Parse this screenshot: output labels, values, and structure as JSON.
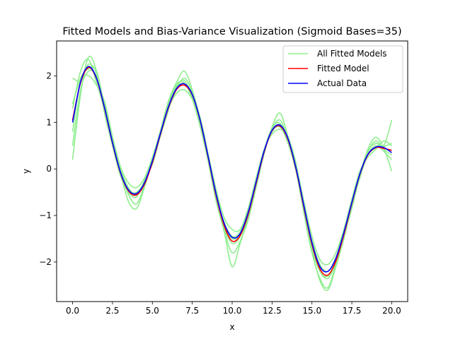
{
  "chart_data": {
    "type": "line",
    "title": "Fitted Models and Bias-Variance Visualization (Sigmoid Bases=35)",
    "xlabel": "x",
    "ylabel": "y",
    "xlim": [
      -1.0,
      21.0
    ],
    "ylim": [
      -2.85,
      2.75
    ],
    "xticks": [
      0.0,
      2.5,
      5.0,
      7.5,
      10.0,
      12.5,
      15.0,
      17.5,
      20.0
    ],
    "xtick_labels": [
      "0.0",
      "2.5",
      "5.0",
      "7.5",
      "10.0",
      "12.5",
      "15.0",
      "17.5",
      "20.0"
    ],
    "yticks": [
      -2,
      -1,
      0,
      1,
      2
    ],
    "ytick_labels": [
      "−2",
      "−1",
      "0",
      "1",
      "2"
    ],
    "grid": false,
    "legend_position": "top-right",
    "x": [
      0.0,
      0.5,
      1.0,
      1.5,
      2.0,
      2.5,
      3.0,
      3.5,
      4.0,
      4.5,
      5.0,
      5.5,
      6.0,
      6.5,
      7.0,
      7.5,
      8.0,
      8.5,
      9.0,
      9.5,
      10.0,
      10.5,
      11.0,
      11.5,
      12.0,
      12.5,
      13.0,
      13.5,
      14.0,
      14.5,
      15.0,
      15.5,
      16.0,
      16.5,
      17.0,
      17.5,
      18.0,
      18.5,
      19.0,
      19.5,
      20.0
    ],
    "series": [
      {
        "name": "Actual Data",
        "color": "#0000ff",
        "values": [
          1.0,
          1.87,
          2.2,
          1.95,
          1.32,
          0.57,
          -0.07,
          -0.45,
          -0.53,
          -0.3,
          0.17,
          0.76,
          1.33,
          1.72,
          1.83,
          1.6,
          1.04,
          0.26,
          -0.55,
          -1.17,
          -1.47,
          -1.39,
          -0.94,
          -0.28,
          0.38,
          0.83,
          0.94,
          0.65,
          0.02,
          -0.8,
          -1.58,
          -2.1,
          -2.2,
          -1.92,
          -1.37,
          -0.72,
          -0.11,
          0.31,
          0.47,
          0.46,
          0.35
        ]
      },
      {
        "name": "Fitted Model",
        "color": "#ff0000",
        "values": [
          1.05,
          1.85,
          2.18,
          1.94,
          1.31,
          0.56,
          -0.08,
          -0.47,
          -0.56,
          -0.33,
          0.14,
          0.74,
          1.31,
          1.7,
          1.8,
          1.59,
          1.03,
          0.24,
          -0.58,
          -1.22,
          -1.55,
          -1.43,
          -0.98,
          -0.31,
          0.36,
          0.82,
          0.92,
          0.63,
          0.0,
          -0.83,
          -1.62,
          -2.15,
          -2.28,
          -1.98,
          -1.41,
          -0.74,
          -0.12,
          0.3,
          0.46,
          0.44,
          0.4
        ]
      },
      {
        "name": "All Fitted Models",
        "color": "#90ee90",
        "lines": [
          [
            1.95,
            1.9,
            2.25,
            2.05,
            1.32,
            0.55,
            -0.05,
            -0.55,
            -0.75,
            -0.35,
            0.18,
            0.78,
            1.4,
            1.78,
            1.9,
            1.55,
            0.98,
            0.2,
            -0.6,
            -1.25,
            -1.6,
            -1.45,
            -1.0,
            -0.3,
            0.4,
            0.88,
            0.98,
            0.6,
            0.05,
            -0.9,
            -1.7,
            -2.2,
            -2.35,
            -2.0,
            -1.4,
            -0.78,
            -0.1,
            0.38,
            0.55,
            0.5,
            1.05
          ],
          [
            0.2,
            1.6,
            2.4,
            2.1,
            1.2,
            0.5,
            -0.1,
            -0.7,
            -0.85,
            -0.4,
            0.2,
            0.82,
            1.45,
            1.85,
            2.1,
            1.7,
            1.05,
            0.3,
            -0.5,
            -1.3,
            -1.8,
            -1.55,
            -1.1,
            -0.4,
            0.32,
            0.9,
            1.2,
            0.7,
            0.12,
            -0.95,
            -1.8,
            -2.35,
            -2.55,
            -2.05,
            -1.45,
            -0.85,
            -0.15,
            0.42,
            0.68,
            0.45,
            -0.05
          ],
          [
            0.8,
            1.9,
            2.0,
            1.8,
            1.45,
            0.7,
            0.05,
            -0.3,
            -0.4,
            -0.2,
            0.25,
            0.8,
            1.3,
            1.62,
            1.7,
            1.5,
            1.1,
            0.32,
            -0.45,
            -1.05,
            -1.3,
            -1.3,
            -0.85,
            -0.2,
            0.42,
            0.75,
            0.85,
            0.7,
            0.1,
            -0.7,
            -1.45,
            -1.95,
            -2.05,
            -1.8,
            -1.3,
            -0.65,
            -0.05,
            0.25,
            0.42,
            0.6,
            0.5
          ],
          [
            1.3,
            2.1,
            2.35,
            1.85,
            1.25,
            0.5,
            -0.15,
            -0.5,
            -0.6,
            -0.25,
            0.1,
            0.7,
            1.25,
            1.8,
            1.85,
            1.5,
            0.9,
            0.15,
            -0.7,
            -1.35,
            -2.1,
            -1.6,
            -1.05,
            -0.35,
            0.35,
            0.8,
            0.9,
            0.55,
            -0.05,
            -0.95,
            -1.75,
            -2.4,
            -2.6,
            -2.1,
            -1.5,
            -0.8,
            -0.2,
            0.3,
            0.5,
            0.38,
            0.2
          ],
          [
            0.5,
            1.7,
            2.1,
            2.0,
            1.4,
            0.6,
            0.0,
            -0.4,
            -0.55,
            -0.3,
            0.15,
            0.72,
            1.35,
            1.75,
            1.8,
            1.62,
            1.0,
            0.28,
            -0.55,
            -1.2,
            -1.5,
            -1.4,
            -0.9,
            -0.25,
            0.38,
            0.85,
            1.05,
            0.62,
            0.0,
            -0.85,
            -1.65,
            -2.2,
            -2.3,
            -1.95,
            -1.4,
            -0.75,
            -0.15,
            0.35,
            0.6,
            0.42,
            0.3
          ],
          [
            1.4,
            1.95,
            2.15,
            2.1,
            1.35,
            0.58,
            -0.05,
            -0.45,
            -0.5,
            -0.28,
            0.2,
            0.8,
            1.3,
            1.7,
            1.95,
            1.65,
            1.08,
            0.22,
            -0.6,
            -1.15,
            -1.45,
            -1.35,
            -0.95,
            -0.28,
            0.4,
            0.82,
            0.95,
            0.68,
            0.05,
            -0.78,
            -1.55,
            -2.05,
            -2.2,
            -1.9,
            -1.35,
            -0.7,
            -0.08,
            0.3,
            0.45,
            0.48,
            0.55
          ]
        ]
      }
    ]
  }
}
